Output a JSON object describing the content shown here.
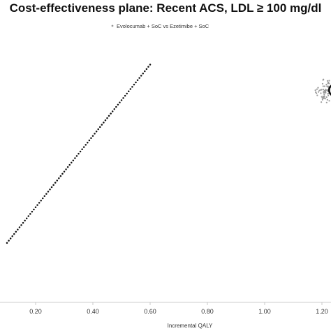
{
  "chart_data": {
    "type": "scatter",
    "title": "Cost-effectiveness plane: Recent ACS, LDL ≥ 100 mg/dl",
    "xlabel": "Incremental QALY",
    "ylabel": "",
    "xlim": [
      0.1,
      1.32
    ],
    "x_ticks": [
      0.2,
      0.4,
      0.6,
      0.8,
      1.0,
      1.2
    ],
    "x_tick_labels": [
      "0.20",
      "0.40",
      "0.60",
      "0.80",
      "1.00",
      "1.20"
    ],
    "grid": false,
    "legend_position": "top-center",
    "series": [
      {
        "name": "Evolocumab + SoC vs Ezetimibe + SoC",
        "kind": "scatter",
        "color": "#9a9a9a",
        "cluster_center": [
          1.24,
          0.78
        ],
        "cluster_spread": [
          0.05,
          0.035
        ],
        "n_points": 220
      },
      {
        "name": "",
        "kind": "confidence-ellipse",
        "color": "#111111",
        "center": [
          1.27,
          0.785
        ],
        "radii": [
          0.045,
          0.03
        ]
      },
      {
        "name": "",
        "kind": "threshold-line",
        "color": "#111111",
        "from": [
          0.1,
          0.22
        ],
        "to": [
          0.6,
          0.88
        ],
        "n_dots": 80
      }
    ]
  }
}
